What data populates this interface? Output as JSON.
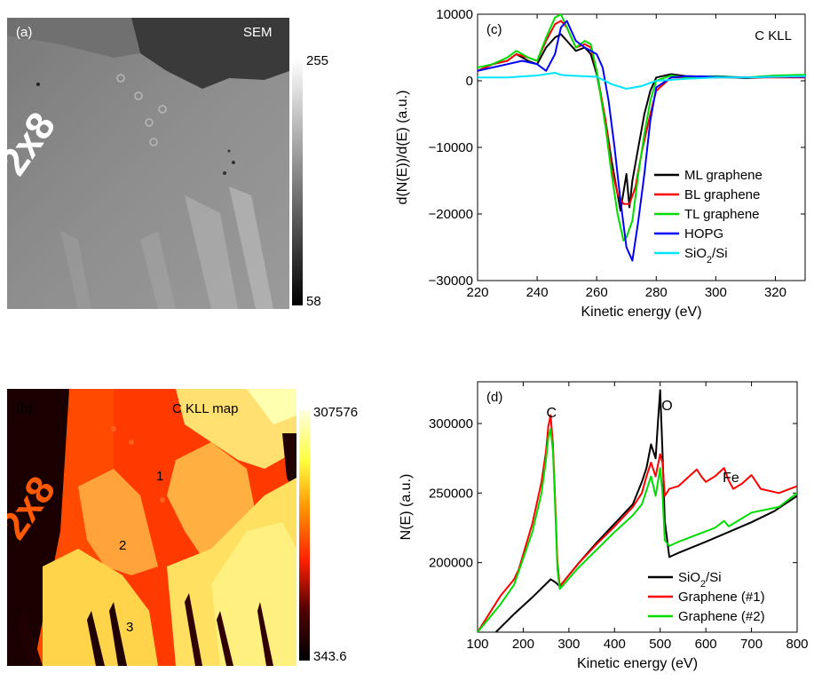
{
  "panel_a": {
    "label": "(a)",
    "title": "SEM",
    "marker_text": "2x8",
    "colorbar": {
      "max": "255",
      "min": "58"
    }
  },
  "panel_b": {
    "label": "(b)",
    "title": "C KLL map",
    "marker_text": "2x8",
    "regions": [
      "1",
      "2",
      "3"
    ],
    "colorbar": {
      "max": "307576",
      "min": "343.6"
    }
  },
  "chart_data": [
    {
      "panel": "(c)",
      "type": "line",
      "annotation": "C KLL",
      "xlabel": "Kinetic energy (eV)",
      "ylabel": "d(N(E))/d(E) (a.u.)",
      "xlim": [
        220,
        330
      ],
      "ylim": [
        -30000,
        10000
      ],
      "xticks": [
        220,
        240,
        260,
        280,
        300,
        320
      ],
      "yticks": [
        10000,
        0,
        -10000,
        -20000,
        -30000
      ],
      "ytick_labels": [
        "10000",
        "0",
        "−10000",
        "−20000",
        "−30000"
      ],
      "legend_position": "lower-right",
      "series": [
        {
          "name": "ML graphene",
          "color": "#000000",
          "x": [
            220,
            225,
            230,
            233,
            237,
            240,
            243,
            246,
            248,
            250,
            253,
            256,
            258,
            260,
            263,
            265,
            267,
            268,
            270,
            271,
            272,
            274,
            276,
            278,
            280,
            285,
            290,
            300,
            310,
            320,
            330
          ],
          "y": [
            1500,
            2500,
            3000,
            4000,
            3000,
            2500,
            5000,
            6500,
            7000,
            6000,
            4500,
            5000,
            4000,
            1000,
            -6000,
            -12000,
            -17000,
            -19500,
            -14000,
            -19000,
            -15000,
            -10000,
            -5000,
            -1500,
            500,
            1000,
            700,
            600,
            400,
            600,
            600
          ]
        },
        {
          "name": "BL graphene",
          "color": "#ff0000",
          "x": [
            220,
            225,
            230,
            233,
            237,
            240,
            243,
            246,
            248,
            250,
            253,
            256,
            258,
            260,
            263,
            265,
            267,
            269,
            271,
            273,
            275,
            278,
            280,
            285,
            290,
            300,
            310,
            320,
            330
          ],
          "y": [
            1500,
            2500,
            3000,
            4000,
            3500,
            3000,
            6000,
            8500,
            9000,
            8000,
            5000,
            5500,
            5000,
            1500,
            -6000,
            -13000,
            -17000,
            -18500,
            -18500,
            -16000,
            -11000,
            -5000,
            -1500,
            500,
            500,
            500,
            500,
            500,
            500
          ]
        },
        {
          "name": "TL graphene",
          "color": "#00dd00",
          "x": [
            220,
            225,
            230,
            233,
            237,
            240,
            243,
            246,
            248,
            250,
            253,
            256,
            258,
            260,
            263,
            265,
            267,
            269,
            270,
            272,
            274,
            276,
            278,
            280,
            285,
            290,
            300,
            310,
            320,
            330
          ],
          "y": [
            2000,
            2500,
            3500,
            4500,
            3500,
            3000,
            6500,
            9500,
            10000,
            8000,
            5000,
            6000,
            5500,
            1500,
            -7000,
            -14000,
            -20000,
            -24000,
            -23500,
            -21000,
            -14000,
            -8000,
            -3000,
            0,
            800,
            500,
            700,
            500,
            800,
            900
          ]
        },
        {
          "name": "HOPG",
          "color": "#0000ff",
          "x": [
            220,
            225,
            230,
            235,
            240,
            243,
            246,
            248,
            250,
            253,
            256,
            258,
            260,
            262,
            264,
            266,
            268,
            270,
            272,
            274,
            276,
            278,
            280,
            285,
            290,
            300,
            310,
            320,
            330
          ],
          "y": [
            1500,
            2000,
            2500,
            3000,
            2500,
            1500,
            4000,
            8000,
            9000,
            6000,
            5000,
            4500,
            4000,
            2000,
            -3000,
            -10000,
            -18000,
            -25000,
            -27000,
            -21000,
            -14000,
            -6000,
            -1000,
            500,
            700,
            600,
            500,
            600,
            600
          ]
        },
        {
          "name": "SiO2/Si",
          "color": "#00e5ff",
          "x": [
            220,
            230,
            240,
            246,
            248,
            250,
            255,
            260,
            265,
            270,
            275,
            280,
            290,
            300,
            310,
            320,
            330
          ],
          "y": [
            500,
            500,
            800,
            1200,
            900,
            800,
            700,
            600,
            -500,
            -1200,
            -800,
            0,
            300,
            500,
            500,
            600,
            700
          ]
        }
      ]
    },
    {
      "panel": "(d)",
      "type": "line",
      "xlabel": "Kinetic energy (eV)",
      "ylabel": "N(E) (a.u.)",
      "xlim": [
        100,
        800
      ],
      "ylim": [
        150000,
        330000
      ],
      "xticks": [
        100,
        200,
        300,
        400,
        500,
        600,
        700,
        800
      ],
      "yticks": [
        200000,
        250000,
        300000
      ],
      "annotations": [
        "C",
        "O",
        "Fe"
      ],
      "legend_position": "lower-right",
      "series": [
        {
          "name": "SiO2/Si",
          "color": "#000000",
          "x": [
            140,
            180,
            220,
            260,
            270,
            280,
            320,
            360,
            400,
            440,
            460,
            470,
            480,
            490,
            495,
            500,
            505,
            510,
            520,
            540,
            600,
            650,
            700,
            750,
            800
          ],
          "y": [
            150000,
            163000,
            175000,
            188000,
            186000,
            183000,
            199000,
            214000,
            228000,
            242000,
            258000,
            268000,
            285000,
            275000,
            300000,
            324000,
            280000,
            230000,
            204000,
            207000,
            215000,
            222000,
            229000,
            237000,
            248000
          ]
        },
        {
          "name": "Graphene (#1)",
          "color": "#ff0000",
          "x": [
            100,
            150,
            175,
            180,
            190,
            220,
            240,
            250,
            255,
            260,
            265,
            270,
            275,
            280,
            320,
            360,
            400,
            440,
            460,
            470,
            480,
            490,
            500,
            505,
            510,
            520,
            540,
            560,
            580,
            590,
            600,
            620,
            640,
            650,
            660,
            680,
            700,
            720,
            760,
            800
          ],
          "y": [
            150000,
            176000,
            186000,
            188000,
            195000,
            228000,
            258000,
            280000,
            298000,
            306000,
            285000,
            245000,
            200000,
            183000,
            199000,
            213000,
            226000,
            240000,
            250000,
            262000,
            272000,
            262000,
            278000,
            272000,
            248000,
            253000,
            255000,
            261000,
            267000,
            262000,
            258000,
            262000,
            268000,
            259000,
            253000,
            257000,
            263000,
            253000,
            250000,
            255000
          ]
        },
        {
          "name": "Graphene (#2)",
          "color": "#00dd00",
          "x": [
            100,
            150,
            180,
            220,
            240,
            250,
            255,
            260,
            265,
            270,
            275,
            280,
            320,
            360,
            400,
            440,
            460,
            470,
            480,
            490,
            500,
            505,
            510,
            520,
            540,
            580,
            620,
            640,
            650,
            700,
            760,
            800
          ],
          "y": [
            150000,
            170000,
            184000,
            222000,
            250000,
            274000,
            290000,
            296000,
            280000,
            240000,
            195000,
            181000,
            196000,
            209000,
            222000,
            234000,
            242000,
            252000,
            262000,
            248000,
            268000,
            250000,
            216000,
            212000,
            215000,
            220000,
            225000,
            230000,
            226000,
            236000,
            240000,
            250000
          ]
        }
      ]
    }
  ]
}
